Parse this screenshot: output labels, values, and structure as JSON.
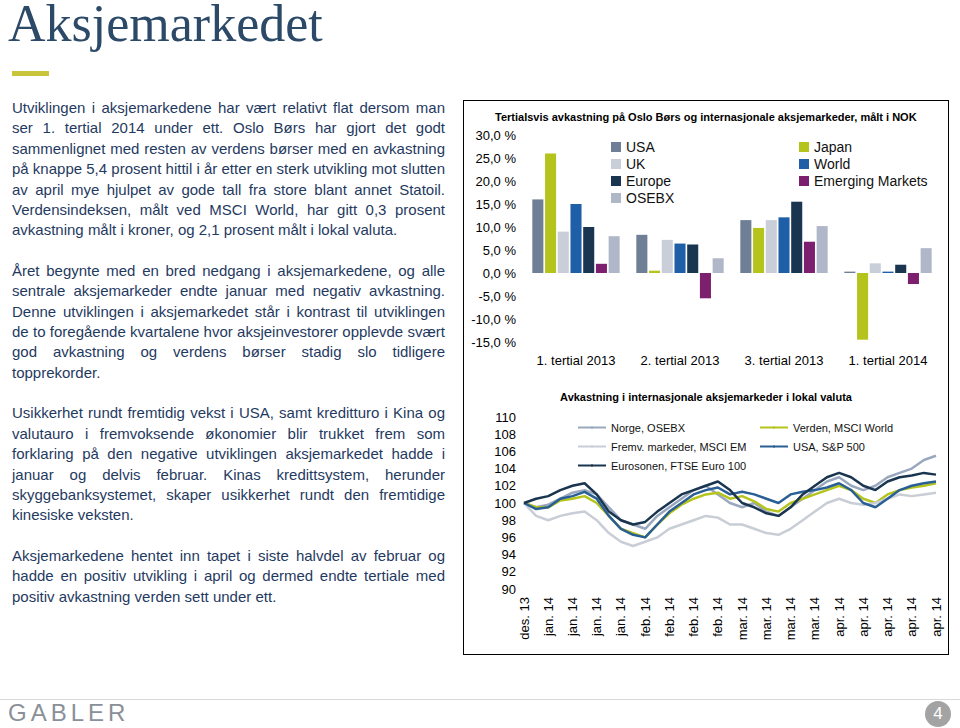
{
  "header": {
    "title": "Aksjemarkedet"
  },
  "text": {
    "paragraphs": [
      "Utviklingen i aksjemarkedene har vært relativt flat dersom man ser 1. tertial 2014 under ett. Oslo Børs har gjort det godt sammenlignet med resten av verdens børser med en avkastning på knappe 5,4 prosent hittil i år etter en sterk utvikling mot slutten av april mye hjulpet av gode tall fra store blant annet Statoil. Verdensindeksen, målt ved MSCI World, har gitt 0,3 prosent avkastning målt i kroner, og 2,1 prosent målt i lokal valuta.",
      "Året begynte med en bred nedgang i aksjemarkedene, og alle sentrale aksjemarkeder endte januar med negativ avkastning. Denne utviklingen i aksjemarkedet står i kontrast til utviklingen de to foregående kvartalene hvor aksjeinvestorer opplevde svært god avkastning og verdens børser stadig slo tidligere topprekorder.",
      "Usikkerhet rundt fremtidig vekst i USA, samt kreditturo i Kina og valutauro i fremvoksende økonomier blir trukket frem som forklaring på den negative utviklingen aksjemarkedet hadde i januar og delvis februar. Kinas kredittsystem, herunder skyggebanksystemet, skaper usikkerhet rundt den fremtidige kinesiske veksten.",
      "Aksjemarkedene hentet inn tapet i siste halvdel av februar og hadde en positiv utvikling i april og dermed endte tertiale med positiv avkastning verden sett under ett."
    ]
  },
  "footer": {
    "logo": "GABLER",
    "page": "4"
  },
  "chart_data": [
    {
      "type": "bar",
      "title": "Tertialsvis avkastning på Oslo Børs og internasjonale aksjemarkeder, målt i NOK",
      "categories": [
        "1. tertial 2013",
        "2. tertial 2013",
        "3. tertial 2013",
        "1. tertial 2014"
      ],
      "series": [
        {
          "name": "USA",
          "color": "#6f7f96",
          "values": [
            16,
            8.3,
            11.5,
            0.3
          ]
        },
        {
          "name": "Japan",
          "color": "#b5c41c",
          "values": [
            26,
            0.5,
            9.8,
            -14.5
          ]
        },
        {
          "name": "UK",
          "color": "#c9ced8",
          "values": [
            9,
            7.2,
            11.5,
            2.1
          ]
        },
        {
          "name": "World",
          "color": "#1f5fa8",
          "values": [
            15,
            6.4,
            12.1,
            0.3
          ]
        },
        {
          "name": "Europe",
          "color": "#1a3550",
          "values": [
            10,
            6.2,
            15.5,
            1.8
          ]
        },
        {
          "name": "Emerging Markets",
          "color": "#7b1f6e",
          "values": [
            2,
            -5.5,
            6.8,
            -2.4
          ]
        },
        {
          "name": "OSEBX",
          "color": "#b0b7c8",
          "values": [
            8,
            3.2,
            10.2,
            5.4
          ]
        }
      ],
      "ylim": [
        -15,
        30
      ],
      "yticks": [
        {
          "value": -15,
          "label": "-15,0 %"
        },
        {
          "value": -10,
          "label": "-10,0 %"
        },
        {
          "value": -5,
          "label": "-5,0 %"
        },
        {
          "value": 0,
          "label": "0,0 %"
        },
        {
          "value": 5,
          "label": "5,0 %"
        },
        {
          "value": 10,
          "label": "10,0 %"
        },
        {
          "value": 15,
          "label": "15,0 %"
        },
        {
          "value": 20,
          "label": "20,0 %"
        },
        {
          "value": 25,
          "label": "25,0 %"
        },
        {
          "value": 30,
          "label": "30,0 %"
        }
      ],
      "grid": false,
      "legend": "top"
    },
    {
      "type": "line",
      "title": "Avkastning i internasjonale aksjemarkeder i lokal valuta",
      "categories": [
        "des. 13",
        null,
        "jan. 14",
        null,
        "jan. 14",
        null,
        "jan. 14",
        null,
        "jan. 14",
        null,
        "feb. 14",
        null,
        "feb. 14",
        null,
        "feb. 14",
        null,
        "feb. 14",
        null,
        "mar. 14",
        null,
        "mar. 14",
        null,
        "mar. 14",
        null,
        "mar. 14",
        null,
        "apr. 14",
        null,
        "apr. 14",
        null,
        "apr. 14",
        null,
        "apr. 14",
        null,
        "apr. 14"
      ],
      "series": [
        {
          "name": "Norge, OSEBX",
          "color": "#9aa8bf",
          "values": [
            100,
            99.5,
            99.8,
            100.5,
            101.2,
            101.5,
            101,
            99.5,
            98,
            97.5,
            97,
            98.5,
            99.5,
            100.5,
            101.5,
            102,
            101,
            100,
            99.5,
            100,
            99,
            98.5,
            99.5,
            100.5,
            101.5,
            102.5,
            103,
            102,
            101.5,
            102,
            103,
            103.5,
            104,
            105,
            105.5
          ]
        },
        {
          "name": "Verden, MSCI World",
          "color": "#b5c41c",
          "values": [
            100,
            99.5,
            99.5,
            100.3,
            100.5,
            100.8,
            100,
            98.5,
            97,
            96.5,
            96,
            97.5,
            98.8,
            99.8,
            100.5,
            101,
            101.2,
            100.5,
            100.8,
            100.2,
            99.3,
            99,
            100,
            100.5,
            101,
            101.5,
            102,
            101.5,
            100.5,
            100,
            101,
            101.5,
            101.8,
            102,
            102.3
          ]
        },
        {
          "name": "Fremv. markeder, MSCI EM",
          "color": "#c8cdd6",
          "values": [
            100,
            98.5,
            98,
            98.5,
            98.8,
            99,
            98,
            96.5,
            95.5,
            95,
            95.5,
            96,
            97,
            97.5,
            98,
            98.5,
            98.3,
            97.5,
            97.5,
            97,
            96.5,
            96.3,
            97,
            98,
            99,
            100,
            100.5,
            100,
            99.8,
            100,
            100.5,
            101,
            100.8,
            101,
            101.2
          ]
        },
        {
          "name": "USA, S&P 500",
          "color": "#2a5f96",
          "values": [
            100,
            99.3,
            99.5,
            100.5,
            100.8,
            101.3,
            100.5,
            98.5,
            97,
            96.3,
            96,
            97.5,
            99,
            100,
            101,
            101.5,
            101.8,
            101,
            101.3,
            101,
            100.5,
            100,
            101,
            101.3,
            101.5,
            101.8,
            102.3,
            101.5,
            100,
            99.5,
            100.5,
            101.5,
            102,
            102.3,
            102.5
          ]
        },
        {
          "name": "Eurosonen, FTSE Euro 100",
          "color": "#1a3550",
          "values": [
            100,
            100.5,
            100.8,
            101.5,
            102,
            102.3,
            101,
            99,
            98,
            97.5,
            97.8,
            99,
            100,
            101,
            101.5,
            102,
            102.5,
            101.5,
            100,
            99.5,
            98.8,
            98.5,
            99.5,
            101,
            102,
            103,
            103.5,
            103,
            102,
            101.5,
            102.5,
            103,
            103.2,
            103.5,
            103.3
          ]
        }
      ],
      "ylim": [
        90,
        110
      ],
      "yticks": [
        90,
        92,
        94,
        96,
        98,
        100,
        102,
        104,
        106,
        108,
        110
      ],
      "grid": false,
      "legend": "top"
    }
  ]
}
